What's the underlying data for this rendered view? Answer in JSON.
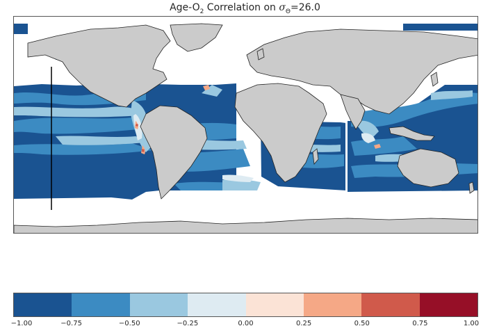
{
  "title": {
    "prefix": "Age-O",
    "subscript": "2",
    "middle": " Correlation on ",
    "symbol": "σ",
    "symbol_sub": "Θ",
    "suffix": "=26.0"
  },
  "colorbar": {
    "colors": [
      "#1a5391",
      "#3c8bc2",
      "#9ac8e0",
      "#deebf2",
      "#fbe3d6",
      "#f5a886",
      "#d05a4b",
      "#960f27"
    ],
    "ticks": [
      "−1.00",
      "−0.75",
      "−0.50",
      "−0.25",
      "0.00",
      "0.25",
      "0.50",
      "0.75",
      "1.00"
    ],
    "range": [
      -1.0,
      1.0
    ]
  },
  "map": {
    "land_color": "#cbcbcb",
    "coast_color": "#222222",
    "nodata_color": "#ffffff"
  }
}
